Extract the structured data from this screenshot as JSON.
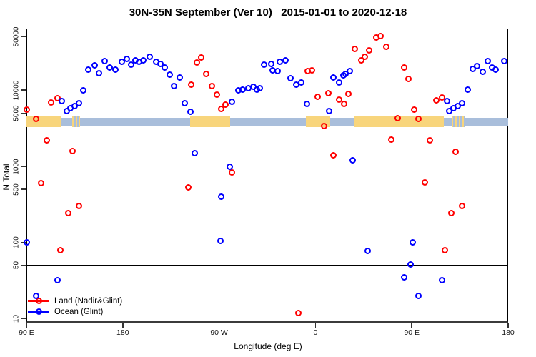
{
  "chart_data": {
    "type": "scatter",
    "title": "30N-35N September (Ver 10)   2015-01-01 to 2020-12-18",
    "xlabel": "Longitude (deg E)",
    "ylabel": "N Total",
    "x_axis": {
      "note": "longitude axis wraps eastward from 90E through 180, 90W, 0, 90E to 180; degrees below run 90-540",
      "range_axis_deg": [
        90,
        540
      ],
      "ticks": [
        {
          "deg": 90,
          "label": "90 E"
        },
        {
          "deg": 180,
          "label": "180"
        },
        {
          "deg": 270,
          "label": "90 W"
        },
        {
          "deg": 360,
          "label": "0"
        },
        {
          "deg": 450,
          "label": "90 E"
        },
        {
          "deg": 540,
          "label": "180"
        }
      ]
    },
    "y_axis": {
      "scale": "log10",
      "ticks": [
        10,
        50,
        100,
        500,
        1000,
        5000,
        10000,
        50000
      ],
      "range": [
        8,
        65000
      ]
    },
    "reference_line": {
      "value": 50,
      "color": "#000000"
    },
    "map_strip": {
      "description": "world land/ocean strip drawn across the plot near N=4000",
      "value_top": 4400,
      "value_bottom": 3450,
      "land_color": "#f8d57c",
      "ocean_color": "#a9bedb",
      "segments": [
        {
          "surface": "land",
          "from": 90,
          "to": 122
        },
        {
          "surface": "ocean",
          "from": 122,
          "to": 133
        },
        {
          "surface": "land",
          "from": 133,
          "to": 140,
          "speckled": true
        },
        {
          "surface": "ocean",
          "from": 140,
          "to": 243
        },
        {
          "surface": "land",
          "from": 243,
          "to": 280
        },
        {
          "surface": "ocean",
          "from": 280,
          "to": 351
        },
        {
          "surface": "land",
          "from": 351,
          "to": 374
        },
        {
          "surface": "ocean",
          "from": 374,
          "to": 396
        },
        {
          "surface": "land",
          "from": 396,
          "to": 480
        },
        {
          "surface": "ocean",
          "from": 480,
          "to": 487
        },
        {
          "surface": "land",
          "from": 487,
          "to": 500,
          "speckled": true
        },
        {
          "surface": "ocean",
          "from": 500,
          "to": 540
        }
      ]
    },
    "legend": {
      "position": "bottom-left"
    },
    "series": [
      {
        "name": "Land (Nadir&Glint)",
        "color": "#ff0000",
        "marker": "open-circle",
        "points": [
          [
            90,
            5600
          ],
          [
            99,
            4200
          ],
          [
            104,
            600
          ],
          [
            109,
            2200
          ],
          [
            113,
            6900
          ],
          [
            119,
            7900
          ],
          [
            122,
            80
          ],
          [
            129,
            245
          ],
          [
            133,
            1600
          ],
          [
            139,
            300
          ],
          [
            241,
            530
          ],
          [
            244,
            11900
          ],
          [
            249,
            22900
          ],
          [
            253,
            26800
          ],
          [
            258,
            16200
          ],
          [
            263,
            11200
          ],
          [
            268,
            8800
          ],
          [
            272,
            5650
          ],
          [
            276,
            6450
          ],
          [
            282,
            840
          ],
          [
            344,
            12
          ],
          [
            353,
            17700
          ],
          [
            357,
            18100
          ],
          [
            362,
            8200
          ],
          [
            368,
            3400
          ],
          [
            372,
            9100
          ],
          [
            377,
            1390
          ],
          [
            382,
            7500
          ],
          [
            387,
            6600
          ],
          [
            391,
            8900
          ],
          [
            397,
            35000
          ],
          [
            403,
            24500
          ],
          [
            406,
            27400
          ],
          [
            410,
            33400
          ],
          [
            417,
            49000
          ],
          [
            421,
            51500
          ],
          [
            426,
            37300
          ],
          [
            431,
            2250
          ],
          [
            437,
            4300
          ],
          [
            443,
            19800
          ],
          [
            447,
            13900
          ],
          [
            452,
            5500
          ],
          [
            456,
            4160
          ],
          [
            462,
            620
          ],
          [
            467,
            2200
          ],
          [
            473,
            7400
          ],
          [
            478,
            8000
          ],
          [
            481,
            79
          ],
          [
            487,
            245
          ],
          [
            491,
            1550
          ],
          [
            497,
            300
          ]
        ]
      },
      {
        "name": "Ocean (Glint)",
        "color": "#0000ff",
        "marker": "open-circle",
        "points": [
          [
            90,
            100
          ],
          [
            99,
            20
          ],
          [
            119,
            32
          ],
          [
            123,
            7200
          ],
          [
            128,
            5300
          ],
          [
            131,
            5800
          ],
          [
            135,
            6200
          ],
          [
            139,
            6700
          ],
          [
            143,
            10000
          ],
          [
            148,
            18500
          ],
          [
            154,
            21000
          ],
          [
            158,
            16600
          ],
          [
            163,
            24000
          ],
          [
            168,
            19800
          ],
          [
            173,
            18500
          ],
          [
            179,
            23400
          ],
          [
            184,
            25600
          ],
          [
            188,
            21600
          ],
          [
            192,
            24500
          ],
          [
            195,
            23400
          ],
          [
            199,
            24500
          ],
          [
            205,
            27400
          ],
          [
            211,
            23400
          ],
          [
            215,
            22000
          ],
          [
            219,
            19800
          ],
          [
            224,
            15900
          ],
          [
            228,
            11200
          ],
          [
            233,
            14500
          ],
          [
            238,
            6700
          ],
          [
            243,
            5200
          ],
          [
            247,
            1480
          ],
          [
            271,
            105
          ],
          [
            272,
            400
          ],
          [
            280,
            1000
          ],
          [
            282,
            7000
          ],
          [
            288,
            10000
          ],
          [
            292,
            10200
          ],
          [
            297,
            10500
          ],
          [
            302,
            11000
          ],
          [
            305,
            10200
          ],
          [
            308,
            10700
          ],
          [
            312,
            21500
          ],
          [
            319,
            22000
          ],
          [
            320,
            18100
          ],
          [
            325,
            17700
          ],
          [
            327,
            23400
          ],
          [
            332,
            24500
          ],
          [
            337,
            14200
          ],
          [
            342,
            11900
          ],
          [
            347,
            12700
          ],
          [
            352,
            6600
          ],
          [
            373,
            5300
          ],
          [
            377,
            14500
          ],
          [
            382,
            12700
          ],
          [
            386,
            15500
          ],
          [
            388,
            16200
          ],
          [
            392,
            17700
          ],
          [
            395,
            1190
          ],
          [
            409,
            78
          ],
          [
            443,
            35
          ],
          [
            449,
            52
          ],
          [
            451,
            100
          ],
          [
            456,
            20
          ],
          [
            478,
            32
          ],
          [
            483,
            7200
          ],
          [
            485,
            5300
          ],
          [
            489,
            5800
          ],
          [
            493,
            6200
          ],
          [
            497,
            6700
          ],
          [
            502,
            10200
          ],
          [
            507,
            18900
          ],
          [
            511,
            20700
          ],
          [
            516,
            17300
          ],
          [
            521,
            24000
          ],
          [
            525,
            19800
          ],
          [
            528,
            18500
          ],
          [
            536,
            24000
          ]
        ]
      }
    ]
  }
}
